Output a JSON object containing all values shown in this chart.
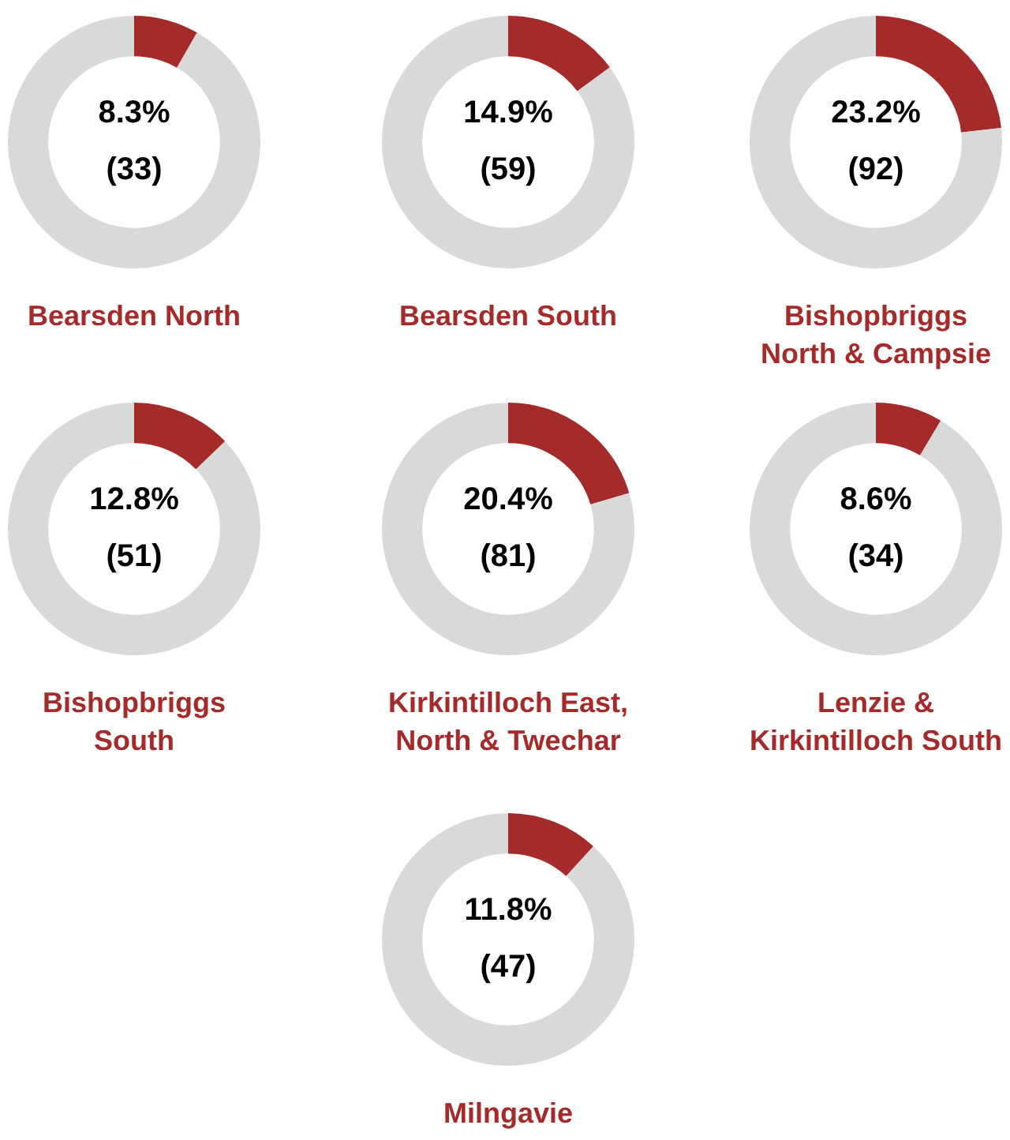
{
  "chart_data": [
    {
      "type": "donut",
      "title": "Bearsden North",
      "categories": [
        null,
        null
      ],
      "values": [
        8.3,
        91.7
      ],
      "colors": [
        "#a52a2a",
        "#d9d9d9"
      ],
      "annotations": [
        "8.3%",
        "(33)"
      ]
    },
    {
      "type": "donut",
      "title": "Bearsden South",
      "categories": [
        null,
        null
      ],
      "values": [
        14.9,
        85.1
      ],
      "colors": [
        "#a52a2a",
        "#d9d9d9"
      ],
      "annotations": [
        "14.9%",
        "(59)"
      ]
    },
    {
      "type": "donut",
      "title": "Bishopbriggs\nNorth & Campsie",
      "categories": [
        null,
        null
      ],
      "values": [
        23.2,
        76.8
      ],
      "colors": [
        "#a52a2a",
        "#d9d9d9"
      ],
      "annotations": [
        "23.2%",
        "(92)"
      ]
    },
    {
      "type": "donut",
      "title": "Bishopbriggs\nSouth",
      "categories": [
        null,
        null
      ],
      "values": [
        12.8,
        87.2
      ],
      "colors": [
        "#a52a2a",
        "#d9d9d9"
      ],
      "annotations": [
        "12.8%",
        "(51)"
      ]
    },
    {
      "type": "donut",
      "title": "Kirkintilloch East,\nNorth & Twechar",
      "categories": [
        null,
        null
      ],
      "values": [
        20.4,
        79.6
      ],
      "colors": [
        "#a52a2a",
        "#d9d9d9"
      ],
      "annotations": [
        "20.4%",
        "(81)"
      ]
    },
    {
      "type": "donut",
      "title": "Lenzie &\nKirkintilloch South",
      "categories": [
        null,
        null
      ],
      "values": [
        8.6,
        91.4
      ],
      "colors": [
        "#a52a2a",
        "#d9d9d9"
      ],
      "annotations": [
        "8.6%",
        "(34)"
      ]
    },
    {
      "type": "donut",
      "title": "Milngavie",
      "categories": [
        null,
        null
      ],
      "values": [
        11.8,
        88.2
      ],
      "colors": [
        "#a52a2a",
        "#d9d9d9"
      ],
      "annotations": [
        "11.8%",
        "(47)"
      ]
    }
  ]
}
